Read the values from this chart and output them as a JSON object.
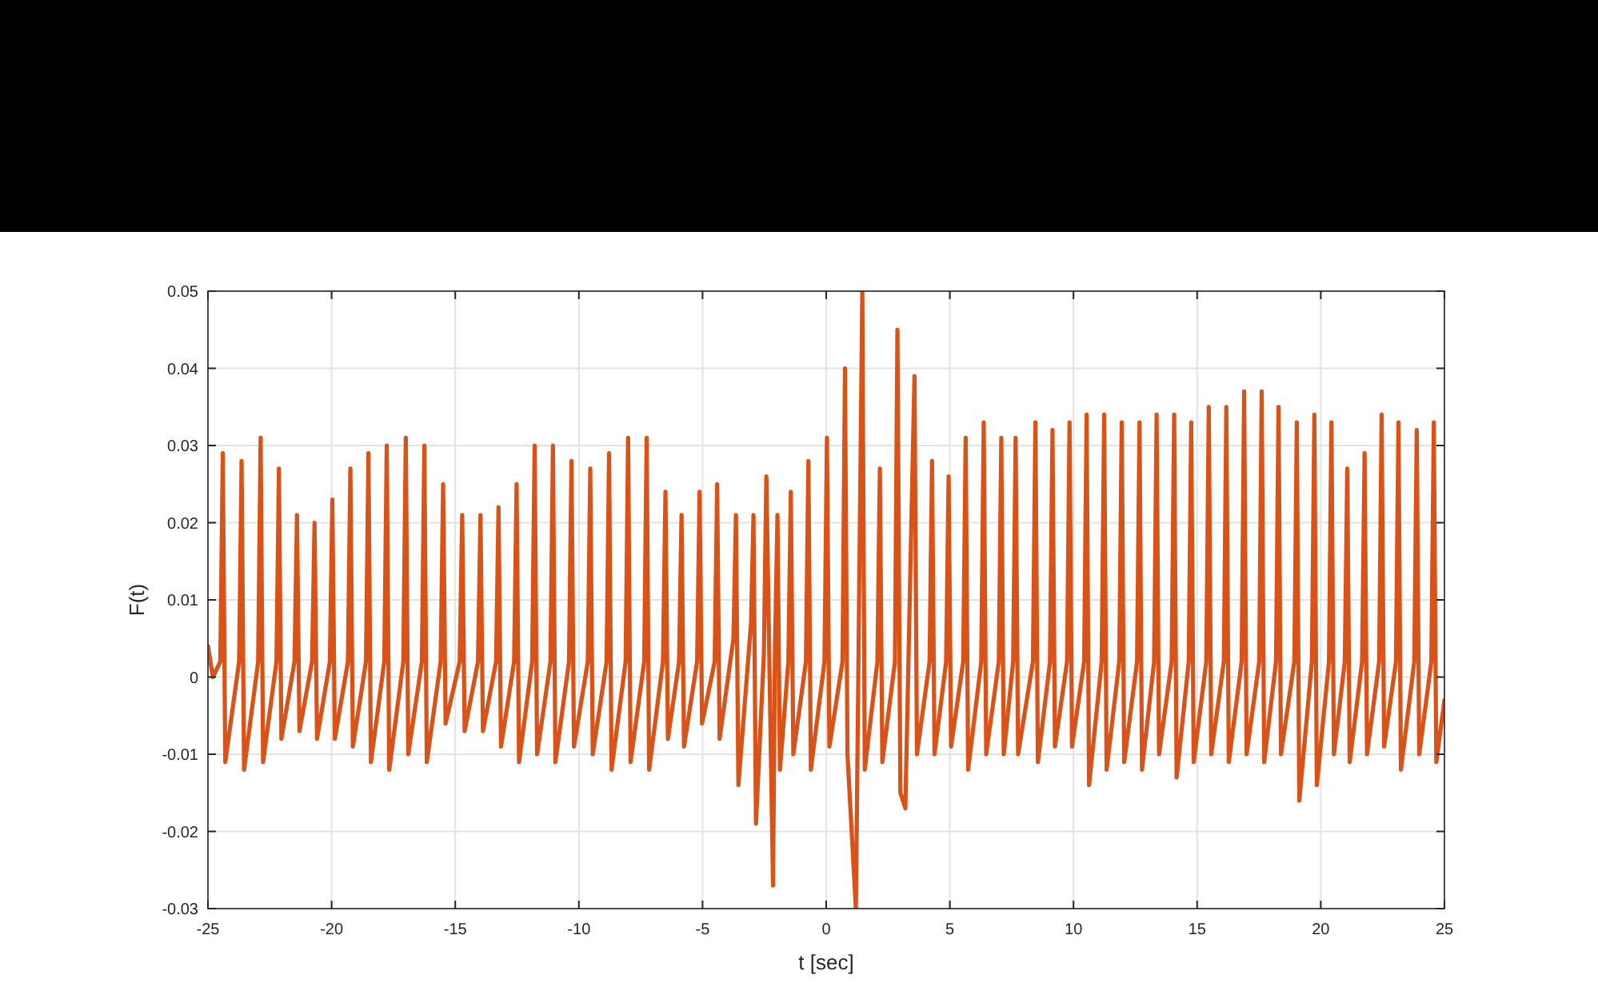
{
  "chart_data": {
    "type": "line",
    "xlabel": "t [sec]",
    "ylabel": "F(t)",
    "xlim": [
      -25,
      25
    ],
    "ylim": [
      -0.03,
      0.05
    ],
    "xticks": [
      -25,
      -20,
      -15,
      -10,
      -5,
      0,
      5,
      10,
      15,
      20,
      25
    ],
    "yticks": [
      -0.03,
      -0.02,
      -0.01,
      0,
      0.01,
      0.02,
      0.03,
      0.04,
      0.05
    ],
    "grid": true,
    "line_style": "solid",
    "series": [
      {
        "color": "#d95319",
        "x": [
          -25,
          -24.8,
          -24.5,
          -24.4,
          -24.3,
          -23.74,
          -23.64,
          -23.54,
          -22.97,
          -22.87,
          -22.77,
          -22.23,
          -22.13,
          -22.03,
          -21.5,
          -21.4,
          -21.3,
          -20.79,
          -20.69,
          -20.59,
          -20.07,
          -19.97,
          -19.87,
          -19.34,
          -19.24,
          -19.14,
          -18.61,
          -18.51,
          -18.41,
          -17.87,
          -17.77,
          -17.67,
          -17.1,
          -17,
          -16.9,
          -16.35,
          -16.25,
          -16.15,
          -15.59,
          -15.49,
          -15.39,
          -14.82,
          -14.72,
          -14.62,
          -14.08,
          -13.98,
          -13.88,
          -13.35,
          -13.25,
          -13.15,
          -12.62,
          -12.52,
          -12.42,
          -11.89,
          -11.79,
          -11.69,
          -11.15,
          -11.05,
          -10.95,
          -10.4,
          -10.3,
          -10.2,
          -9.64,
          -9.54,
          -9.44,
          -8.88,
          -8.78,
          -8.68,
          -8.11,
          -8.01,
          -7.91,
          -7.36,
          -7.26,
          -7.16,
          -6.6,
          -6.5,
          -6.4,
          -5.95,
          -5.85,
          -5.75,
          -5.22,
          -5.12,
          -5.02,
          -4.51,
          -4.41,
          -4.31,
          -3.75,
          -3.65,
          -3.55,
          -3.04,
          -2.94,
          -2.84,
          -2.52,
          -2.42,
          -2.15,
          -2.07,
          -1.97,
          -1.87,
          -1.53,
          -1.43,
          -1.33,
          -0.82,
          -0.72,
          -0.62,
          -0.07,
          0.03,
          0.13,
          0.66,
          0.76,
          0.86,
          1.2,
          1.46,
          1.56,
          2.07,
          2.17,
          2.27,
          2.78,
          2.88,
          3,
          3.2,
          3.57,
          3.67,
          4.18,
          4.28,
          4.38,
          4.85,
          4.95,
          5.05,
          5.54,
          5.64,
          5.74,
          6.27,
          6.37,
          6.47,
          6.98,
          7.08,
          7.18,
          7.56,
          7.66,
          7.76,
          8.36,
          8.46,
          8.56,
          9.05,
          9.15,
          9.25,
          9.74,
          9.84,
          9.94,
          10.43,
          10.53,
          10.63,
          11.14,
          11.24,
          11.34,
          11.85,
          11.95,
          12.05,
          12.57,
          12.67,
          12.77,
          13.26,
          13.36,
          13.46,
          13.97,
          14.07,
          14.17,
          14.66,
          14.76,
          14.86,
          15.37,
          15.47,
          15.57,
          16.08,
          16.18,
          16.28,
          16.8,
          16.9,
          17,
          17.51,
          17.61,
          17.71,
          18.19,
          18.29,
          18.39,
          18.93,
          19.03,
          19.13,
          19.64,
          19.74,
          19.84,
          20.33,
          20.43,
          20.53,
          20.97,
          21.07,
          21.17,
          21.67,
          21.77,
          21.87,
          22.36,
          22.46,
          22.56,
          23.04,
          23.14,
          23.24,
          23.78,
          23.88,
          23.98,
          24.47,
          24.57,
          24.67,
          25
        ],
        "values": [
          0.004,
          0,
          0.002,
          0.029,
          -0.011,
          0.002,
          0.028,
          -0.012,
          0.002,
          0.031,
          -0.011,
          0.002,
          0.027,
          -0.008,
          0.002,
          0.021,
          -0.007,
          0.002,
          0.02,
          -0.008,
          0.002,
          0.023,
          -0.008,
          0.002,
          0.027,
          -0.009,
          0.002,
          0.029,
          -0.011,
          0.002,
          0.03,
          -0.012,
          0.002,
          0.031,
          -0.01,
          0.002,
          0.03,
          -0.011,
          0.002,
          0.025,
          -0.006,
          0.002,
          0.021,
          -0.007,
          0.002,
          0.021,
          -0.007,
          0.002,
          0.022,
          -0.009,
          0.002,
          0.025,
          -0.011,
          0.002,
          0.03,
          -0.01,
          0.002,
          0.03,
          -0.011,
          0.002,
          0.028,
          -0.009,
          0.002,
          0.027,
          -0.01,
          0.002,
          0.029,
          -0.012,
          0.002,
          0.031,
          -0.011,
          0.002,
          0.031,
          -0.012,
          0.002,
          0.024,
          -0.008,
          0.002,
          0.021,
          -0.009,
          0.002,
          0.024,
          -0.006,
          0.002,
          0.025,
          -0.008,
          0.005,
          0.021,
          -0.014,
          0.007,
          0.021,
          -0.019,
          0.003,
          0.026,
          -0.027,
          0.004,
          0.021,
          -0.012,
          0.002,
          0.024,
          -0.01,
          0.002,
          0.028,
          -0.012,
          0.002,
          0.031,
          -0.009,
          0.002,
          0.04,
          -0.01,
          -0.03,
          0.05,
          -0.012,
          0.002,
          0.027,
          -0.011,
          0.002,
          0.045,
          -0.015,
          -0.017,
          0.039,
          -0.01,
          0.002,
          0.028,
          -0.01,
          0.002,
          0.026,
          -0.009,
          0.002,
          0.031,
          -0.012,
          0.002,
          0.033,
          -0.01,
          0.002,
          0.031,
          -0.01,
          0.002,
          0.031,
          -0.01,
          0.002,
          0.033,
          -0.011,
          0.002,
          0.032,
          -0.009,
          0.002,
          0.033,
          -0.009,
          0.002,
          0.034,
          -0.014,
          0.002,
          0.034,
          -0.012,
          0.002,
          0.033,
          -0.011,
          0.002,
          0.033,
          -0.012,
          0.002,
          0.034,
          -0.01,
          0.002,
          0.034,
          -0.013,
          0.002,
          0.033,
          -0.011,
          0.002,
          0.035,
          -0.01,
          0.002,
          0.035,
          -0.011,
          0.002,
          0.037,
          -0.01,
          0.002,
          0.037,
          -0.011,
          0.002,
          0.035,
          -0.01,
          0.002,
          0.033,
          -0.016,
          0.002,
          0.034,
          -0.014,
          0.002,
          0.033,
          -0.01,
          0.002,
          0.027,
          -0.011,
          0.002,
          0.029,
          -0.01,
          0.002,
          0.034,
          -0.009,
          0.002,
          0.033,
          -0.012,
          0.002,
          0.032,
          -0.01,
          0.002,
          0.033,
          -0.011,
          -0.003
        ]
      }
    ]
  }
}
